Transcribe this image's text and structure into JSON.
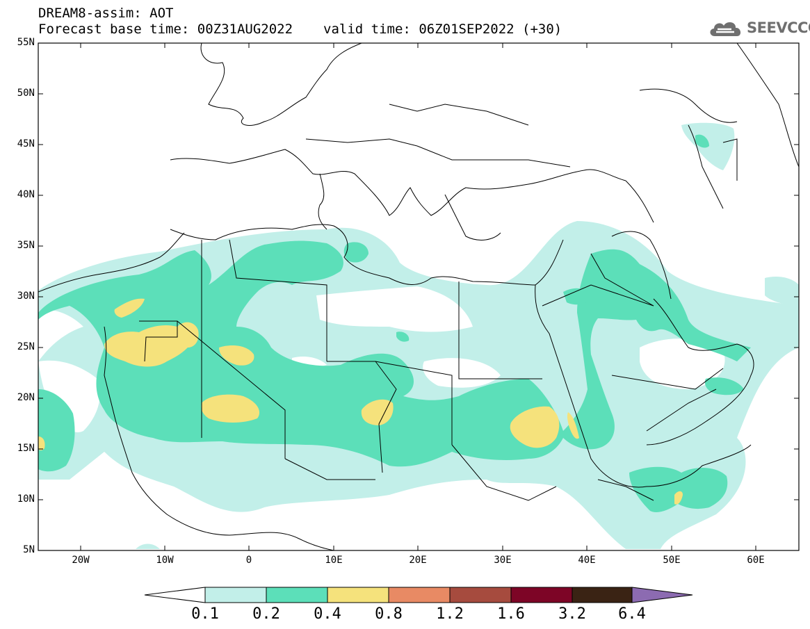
{
  "header": {
    "model_line": "DREAM8-assim: AOT",
    "base_time": "Forecast base time: 00Z31AUG2022",
    "valid_time": "valid time: 06Z01SEP2022 (+30)"
  },
  "logo": {
    "icon": "cloud-icon",
    "text": "SEEVCCC",
    "color": "#6f6f6f"
  },
  "map": {
    "variable": "AOT",
    "lat_labels": [
      "55N",
      "50N",
      "45N",
      "40N",
      "35N",
      "30N",
      "25N",
      "20N",
      "15N",
      "10N",
      "5N"
    ],
    "lon_labels": [
      "20W",
      "10W",
      "0",
      "10E",
      "20E",
      "30E",
      "40E",
      "50E",
      "60E"
    ],
    "lon_range": [
      -25,
      65
    ],
    "lat_range": [
      5,
      55
    ]
  },
  "colorbar": {
    "labels": [
      "0.1",
      "0.2",
      "0.4",
      "0.8",
      "1.2",
      "1.6",
      "3.2",
      "6.4"
    ],
    "colors": [
      "#ffffff",
      "#c2efe9",
      "#5cdfb9",
      "#f5e27c",
      "#e88a64",
      "#a64b3e",
      "#7d0526",
      "#3a2314",
      "#8c6bb1"
    ]
  },
  "aot_field_colors": {
    "low": "#c2efe9",
    "moderate": "#5cdfb9",
    "high": "#f5e27c"
  }
}
